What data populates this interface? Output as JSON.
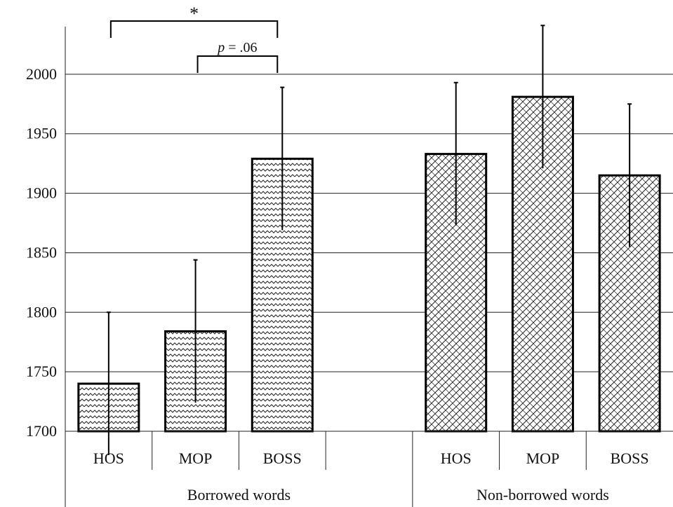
{
  "chart_data": {
    "type": "bar",
    "title": "",
    "xlabel": "",
    "ylabel": "",
    "ylim": [
      1700,
      2040
    ],
    "yticks": [
      1700,
      1750,
      1800,
      1850,
      1900,
      1950,
      2000
    ],
    "grid": true,
    "groups": [
      {
        "label": "Borrowed words",
        "pattern": "wave",
        "categories": [
          "HOS",
          "MOP",
          "BOSS"
        ],
        "values": [
          1740,
          1784,
          1929
        ],
        "errors": [
          60,
          60,
          60
        ]
      },
      {
        "label": "Non-borrowed words",
        "pattern": "crosshatch",
        "categories": [
          "HOS",
          "MOP",
          "BOSS"
        ],
        "values": [
          1933,
          1981,
          1915
        ],
        "errors": [
          60,
          60,
          60
        ]
      }
    ],
    "annotations": [
      {
        "text": "*",
        "from": "Borrowed words / HOS",
        "to": "Borrowed words / BOSS"
      },
      {
        "text": "p = .06",
        "from": "Borrowed words / MOP",
        "to": "Borrowed words / BOSS"
      }
    ]
  }
}
